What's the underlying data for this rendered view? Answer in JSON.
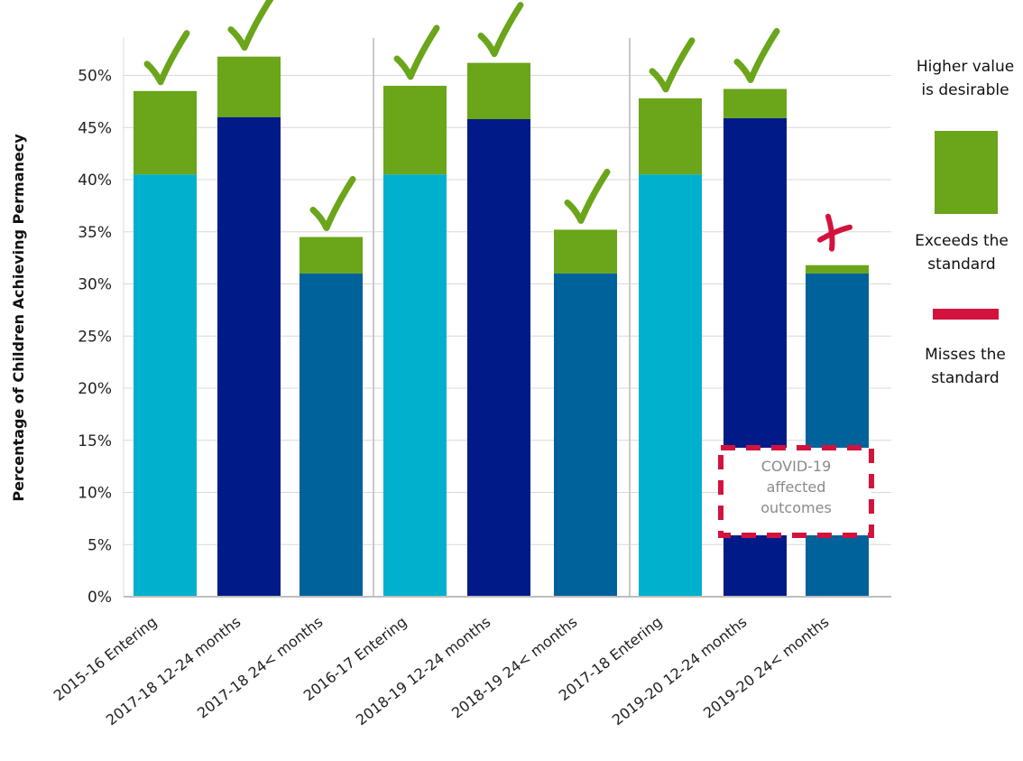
{
  "chart_data": {
    "type": "bar",
    "stacked": true,
    "ylabel": "Percentage of Children Achieving Permanecy",
    "xlabel": "",
    "ylim": [
      0,
      53
    ],
    "yticks": [
      "0%",
      "5%",
      "10%",
      "15%",
      "20%",
      "25%",
      "30%",
      "35%",
      "40%",
      "45%",
      "50%"
    ],
    "categories": [
      "2015-16 Entering",
      "2017-18 12-24 months",
      "2017-18 24< months",
      "2016-17 Entering",
      "2018-19 12-24 months",
      "2018-19 24< months",
      "2017-18 Entering",
      "2019-20 12-24 months",
      "2019-20 24< months"
    ],
    "groups": [
      [
        0,
        1,
        2
      ],
      [
        3,
        4,
        5
      ],
      [
        6,
        7,
        8
      ]
    ],
    "standard": [
      40.5,
      46.0,
      31.0,
      40.5,
      45.8,
      31.0,
      40.5,
      45.9,
      31.0
    ],
    "values": [
      48.5,
      51.8,
      34.5,
      49.0,
      51.2,
      35.2,
      47.8,
      48.7,
      31.8
    ],
    "status": [
      "check",
      "check",
      "check",
      "check",
      "check",
      "check",
      "check",
      "check",
      "cross"
    ],
    "colors": {
      "standard": [
        "#00b0cc",
        "#001a87",
        "#00629b",
        "#00b0cc",
        "#001a87",
        "#00629b",
        "#00b0cc",
        "#001a87",
        "#00629b"
      ],
      "exceeds": "#6aa51a",
      "misses": "#d3133d",
      "grid": "#d8d8d8",
      "separator": "#c9c9c9",
      "axis": "#bdbdbd"
    },
    "legend": {
      "header": [
        "Higher value",
        "is desirable"
      ],
      "exceeds": [
        "Exceeds the",
        "standard"
      ],
      "misses": [
        "Misses the",
        "standard"
      ],
      "position": "right"
    },
    "annotation": {
      "lines": [
        "COVID-19",
        "affected",
        "outcomes"
      ],
      "target_categories": [
        7,
        8
      ]
    }
  }
}
